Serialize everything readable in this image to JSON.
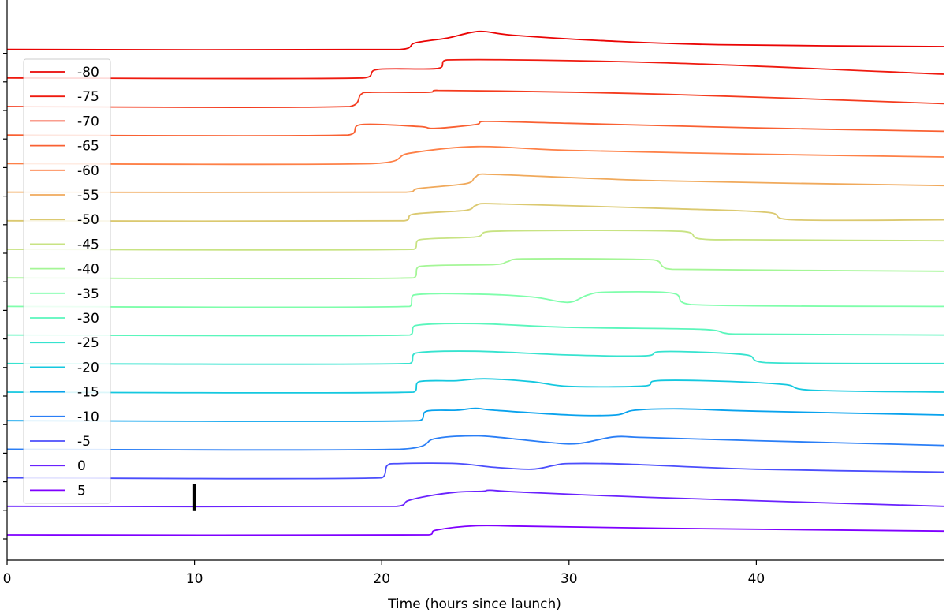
{
  "chart_data": {
    "type": "line",
    "title": "",
    "xlabel": "Time (hours since launch)",
    "ylabel": "",
    "xlim": [
      0,
      50
    ],
    "x_ticks": [
      0,
      10,
      20,
      30,
      40
    ],
    "grid": false,
    "legend_position": "upper-left",
    "marker": {
      "x": 10,
      "series": "0"
    },
    "series": [
      {
        "name": "5",
        "color": "#7f00ff",
        "points": [
          [
            0,
            0.0
          ],
          [
            22.5,
            0.0
          ],
          [
            22.9,
            0.25
          ],
          [
            25,
            0.48
          ],
          [
            28,
            0.45
          ],
          [
            35,
            0.35
          ],
          [
            50,
            0.2
          ]
        ]
      },
      {
        "name": "0",
        "color": "#6a22fe",
        "points": [
          [
            0,
            0.0
          ],
          [
            20.8,
            0.0
          ],
          [
            21.4,
            0.3
          ],
          [
            22.5,
            0.55
          ],
          [
            24,
            0.75
          ],
          [
            25.4,
            0.8
          ],
          [
            25.8,
            0.85
          ],
          [
            27.5,
            0.75
          ],
          [
            35,
            0.45
          ],
          [
            50,
            0.0
          ]
        ]
      },
      {
        "name": "-5",
        "color": "#4b4efc",
        "points": [
          [
            0,
            0.0
          ],
          [
            20,
            0.0
          ],
          [
            20.3,
            0.65
          ],
          [
            21,
            0.75
          ],
          [
            24,
            0.75
          ],
          [
            26,
            0.55
          ],
          [
            28,
            0.45
          ],
          [
            29.2,
            0.65
          ],
          [
            30,
            0.75
          ],
          [
            33,
            0.72
          ],
          [
            40,
            0.45
          ],
          [
            50,
            0.3
          ]
        ]
      },
      {
        "name": "-10",
        "color": "#2a7ef6",
        "points": [
          [
            0,
            0.0
          ],
          [
            21,
            0.0
          ],
          [
            22.8,
            0.55
          ],
          [
            24.5,
            0.7
          ],
          [
            26,
            0.65
          ],
          [
            29,
            0.35
          ],
          [
            30.5,
            0.3
          ],
          [
            32.4,
            0.65
          ],
          [
            34,
            0.62
          ],
          [
            40,
            0.45
          ],
          [
            50,
            0.2
          ]
        ]
      },
      {
        "name": "-15",
        "color": "#08a2ed",
        "points": [
          [
            0,
            0.0
          ],
          [
            22,
            0.0
          ],
          [
            22.4,
            0.5
          ],
          [
            24,
            0.55
          ],
          [
            25,
            0.65
          ],
          [
            26,
            0.55
          ],
          [
            30,
            0.3
          ],
          [
            32.5,
            0.3
          ],
          [
            33.5,
            0.55
          ],
          [
            36,
            0.62
          ],
          [
            40,
            0.5
          ],
          [
            50,
            0.3
          ]
        ]
      },
      {
        "name": "-20",
        "color": "#14c8df",
        "points": [
          [
            0,
            0.0
          ],
          [
            21.7,
            0.0
          ],
          [
            22,
            0.55
          ],
          [
            24,
            0.6
          ],
          [
            25.5,
            0.7
          ],
          [
            28,
            0.55
          ],
          [
            30,
            0.3
          ],
          [
            34,
            0.32
          ],
          [
            34.7,
            0.6
          ],
          [
            38,
            0.58
          ],
          [
            41.5,
            0.4
          ],
          [
            43,
            0.1
          ],
          [
            50,
            0.0
          ]
        ]
      },
      {
        "name": "-25",
        "color": "#36e3cf",
        "points": [
          [
            0,
            0.0
          ],
          [
            21.5,
            0.0
          ],
          [
            21.8,
            0.55
          ],
          [
            25,
            0.65
          ],
          [
            30,
            0.45
          ],
          [
            34,
            0.4
          ],
          [
            34.8,
            0.62
          ],
          [
            37,
            0.6
          ],
          [
            39.5,
            0.45
          ],
          [
            40.5,
            0.05
          ],
          [
            50,
            0.0
          ]
        ]
      },
      {
        "name": "-30",
        "color": "#5af6bc",
        "points": [
          [
            0,
            0.0
          ],
          [
            21.5,
            0.0
          ],
          [
            21.8,
            0.5
          ],
          [
            25,
            0.6
          ],
          [
            30,
            0.4
          ],
          [
            37,
            0.3
          ],
          [
            38.3,
            0.1
          ],
          [
            39,
            0.05
          ],
          [
            50,
            0.0
          ]
        ]
      },
      {
        "name": "-35",
        "color": "#7ffeab",
        "points": [
          [
            0,
            0.0
          ],
          [
            21.5,
            0.0
          ],
          [
            21.7,
            0.6
          ],
          [
            25,
            0.65
          ],
          [
            28,
            0.5
          ],
          [
            29.5,
            0.25
          ],
          [
            30.2,
            0.25
          ],
          [
            31,
            0.6
          ],
          [
            32,
            0.75
          ],
          [
            35.5,
            0.7
          ],
          [
            36.5,
            0.1
          ],
          [
            50,
            0.0
          ]
        ]
      },
      {
        "name": "-40",
        "color": "#a4f696",
        "points": [
          [
            0,
            0.0
          ],
          [
            21.7,
            0.0
          ],
          [
            22,
            0.6
          ],
          [
            26,
            0.7
          ],
          [
            26.7,
            0.85
          ],
          [
            27.5,
            1.0
          ],
          [
            34.5,
            0.95
          ],
          [
            35,
            0.6
          ],
          [
            35.5,
            0.45
          ],
          [
            50,
            0.35
          ]
        ]
      },
      {
        "name": "-45",
        "color": "#c8e383",
        "points": [
          [
            0,
            0.0
          ],
          [
            21.7,
            0.0
          ],
          [
            22,
            0.5
          ],
          [
            25,
            0.65
          ],
          [
            25.9,
            0.95
          ],
          [
            36,
            0.95
          ],
          [
            37,
            0.55
          ],
          [
            40,
            0.5
          ],
          [
            50,
            0.45
          ]
        ]
      },
      {
        "name": "-50",
        "color": "#dbc970",
        "points": [
          [
            0,
            0.0
          ],
          [
            21.2,
            0.0
          ],
          [
            21.7,
            0.35
          ],
          [
            24.5,
            0.55
          ],
          [
            25,
            0.8
          ],
          [
            25.8,
            0.9
          ],
          [
            35,
            0.65
          ],
          [
            40.5,
            0.45
          ],
          [
            42,
            0.05
          ],
          [
            50,
            0.05
          ]
        ]
      },
      {
        "name": "-55",
        "color": "#f0a95b",
        "points": [
          [
            0,
            0.0
          ],
          [
            21.3,
            0.0
          ],
          [
            22,
            0.2
          ],
          [
            24.5,
            0.45
          ],
          [
            25,
            0.8
          ],
          [
            25.6,
            0.95
          ],
          [
            35,
            0.6
          ],
          [
            50,
            0.35
          ]
        ]
      },
      {
        "name": "-60",
        "color": "#fe8047",
        "points": [
          [
            0,
            0.0
          ],
          [
            19.5,
            0.0
          ],
          [
            21.5,
            0.55
          ],
          [
            25.1,
            0.9
          ],
          [
            30,
            0.7
          ],
          [
            40,
            0.5
          ],
          [
            50,
            0.35
          ]
        ]
      },
      {
        "name": "-65",
        "color": "#f96032",
        "points": [
          [
            0,
            0.0
          ],
          [
            18.2,
            0.0
          ],
          [
            18.9,
            0.55
          ],
          [
            22,
            0.45
          ],
          [
            22.8,
            0.35
          ],
          [
            25,
            0.55
          ],
          [
            25.5,
            0.72
          ],
          [
            30,
            0.62
          ],
          [
            40,
            0.38
          ],
          [
            50,
            0.2
          ]
        ]
      },
      {
        "name": "-70",
        "color": "#f43b1e",
        "points": [
          [
            0,
            0.0
          ],
          [
            18.3,
            0.0
          ],
          [
            18.9,
            0.65
          ],
          [
            19.5,
            0.75
          ],
          [
            22.5,
            0.75
          ],
          [
            23,
            0.85
          ],
          [
            35,
            0.65
          ],
          [
            50,
            0.15
          ]
        ]
      },
      {
        "name": "-75",
        "color": "#ef1a0f",
        "points": [
          [
            0,
            0.0
          ],
          [
            19,
            0.0
          ],
          [
            19.8,
            0.45
          ],
          [
            23,
            0.5
          ],
          [
            23.5,
            0.95
          ],
          [
            35,
            0.8
          ],
          [
            50,
            0.2
          ]
        ]
      },
      {
        "name": "-80",
        "color": "#ea0404",
        "points": [
          [
            0,
            0.0
          ],
          [
            21,
            0.0
          ],
          [
            21.8,
            0.35
          ],
          [
            23.5,
            0.6
          ],
          [
            25.2,
            0.95
          ],
          [
            27,
            0.75
          ],
          [
            32,
            0.45
          ],
          [
            38,
            0.25
          ],
          [
            50,
            0.15
          ]
        ]
      }
    ]
  }
}
